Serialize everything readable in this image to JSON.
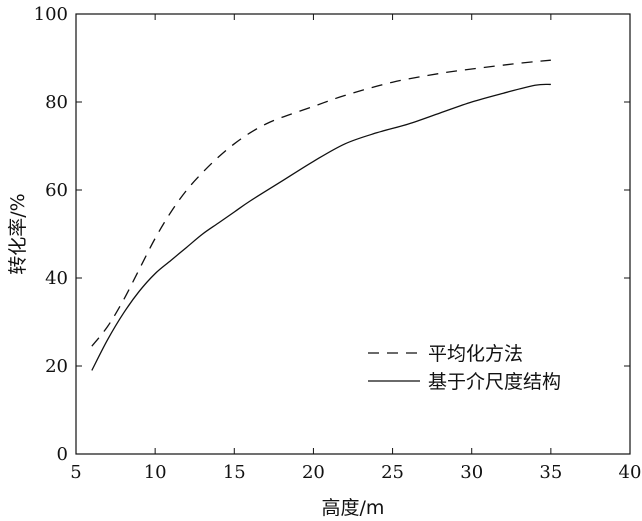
{
  "chart_data": {
    "type": "line",
    "title": "",
    "xlabel": "高度/m",
    "ylabel": "转化率/%",
    "xlim": [
      5,
      40
    ],
    "ylim": [
      0,
      100
    ],
    "xticks": [
      5,
      10,
      15,
      20,
      25,
      30,
      35,
      40
    ],
    "yticks": [
      0,
      20,
      40,
      60,
      80,
      100
    ],
    "grid": false,
    "legend_position": "lower-right",
    "series": [
      {
        "name": "平均化方法",
        "style": "dashed",
        "color": "#111111",
        "x": [
          6,
          7,
          8,
          9,
          10,
          11,
          12,
          13,
          14,
          15,
          16,
          17,
          18,
          20,
          22,
          25,
          28,
          30,
          33,
          35
        ],
        "y": [
          24.5,
          29,
          35,
          42,
          49,
          55,
          60,
          64,
          67.5,
          70.5,
          73,
          75,
          76.5,
          79,
          81.5,
          84.5,
          86.5,
          87.5,
          88.8,
          89.5
        ]
      },
      {
        "name": "基于介尺度结构",
        "style": "solid",
        "color": "#111111",
        "x": [
          6,
          7,
          8,
          9,
          10,
          11,
          12,
          13,
          14,
          15,
          16,
          18,
          20,
          22,
          24,
          26,
          28,
          30,
          32,
          34,
          35
        ],
        "y": [
          19,
          26,
          32,
          37,
          41,
          44,
          47,
          50,
          52.5,
          55,
          57.5,
          62,
          66.5,
          70.5,
          73,
          75,
          77.5,
          80,
          82,
          83.8,
          84
        ]
      }
    ]
  }
}
